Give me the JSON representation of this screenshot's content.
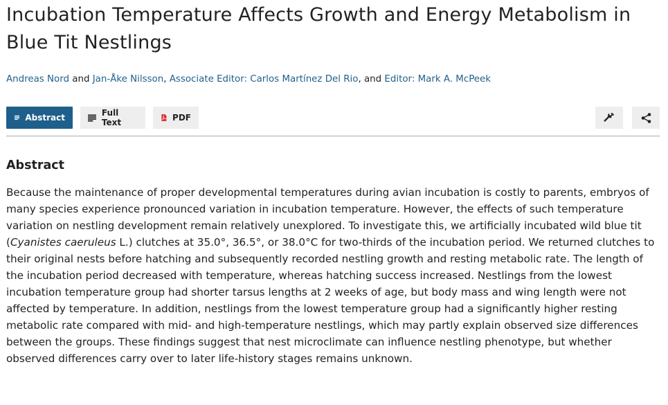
{
  "article": {
    "title": "Incubation Temperature Affects Growth and Energy Metabolism in Blue Tit Nestlings",
    "authors": {
      "author1": "Andreas Nord",
      "sep1": " and ",
      "author2": "Jan-Åke Nilsson",
      "sep2": ", ",
      "assoc_editor": "Associate Editor: Carlos Martínez Del Rio",
      "sep3": ", and ",
      "editor": "Editor: Mark A. McPeek"
    }
  },
  "toolbar": {
    "tabs": [
      {
        "label": "Abstract",
        "icon": "lines-icon",
        "active": true
      },
      {
        "label": "Full Text",
        "icon": "lines-icon",
        "active": false
      },
      {
        "label": "PDF",
        "icon": "pdf-icon",
        "active": false
      }
    ],
    "tools_icon": "wrench-icon",
    "share_icon": "share-icon",
    "accent_color": "#1f5f8b",
    "pdf_icon_color": "#d62828"
  },
  "abstract": {
    "heading": "Abstract",
    "text_before_species": "Because the maintenance of proper developmental temperatures during avian incubation is costly to parents, embryos of many species experience pronounced variation in incubation temperature. However, the effects of such temperature variation on nestling development remain relatively unexplored. To investigate this, we artificially incubated wild blue tit (",
    "species": "Cyanistes caeruleus",
    "text_after_species": " L.) clutches at 35.0°, 36.5°, or 38.0°C for two-thirds of the incubation period. We returned clutches to their original nests before hatching and subsequently recorded nestling growth and resting metabolic rate. The length of the incubation period decreased with temperature, whereas hatching success increased. Nestlings from the lowest incubation temperature group had shorter tarsus lengths at 2 weeks of age, but body mass and wing length were not affected by temperature. In addition, nestlings from the lowest temperature group had a significantly higher resting metabolic rate compared with mid- and high-temperature nestlings, which may partly explain observed size differences between the groups. These findings suggest that nest microclimate can influence nestling phenotype, but whether observed differences carry over to later life-history stages remains unknown."
  }
}
